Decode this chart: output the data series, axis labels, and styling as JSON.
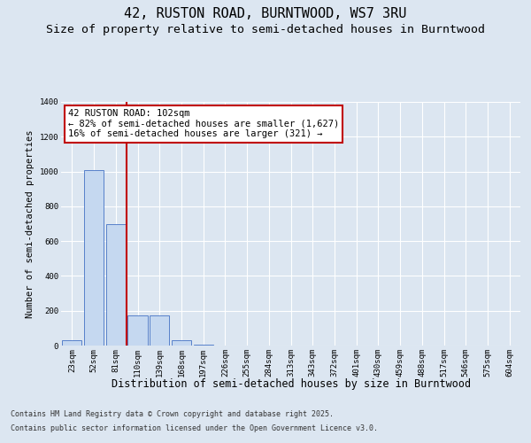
{
  "title_line1": "42, RUSTON ROAD, BURNTWOOD, WS7 3RU",
  "title_line2": "Size of property relative to semi-detached houses in Burntwood",
  "xlabel": "Distribution of semi-detached houses by size in Burntwood",
  "ylabel": "Number of semi-detached properties",
  "categories": [
    "23sqm",
    "52sqm",
    "81sqm",
    "110sqm",
    "139sqm",
    "168sqm",
    "197sqm",
    "226sqm",
    "255sqm",
    "284sqm",
    "313sqm",
    "343sqm",
    "372sqm",
    "401sqm",
    "430sqm",
    "459sqm",
    "488sqm",
    "517sqm",
    "546sqm",
    "575sqm",
    "604sqm"
  ],
  "values": [
    30,
    1010,
    700,
    175,
    175,
    30,
    5,
    0,
    0,
    0,
    0,
    0,
    0,
    0,
    0,
    0,
    0,
    0,
    0,
    0,
    0
  ],
  "bar_color": "#c5d8f0",
  "bar_edge_color": "#4472c4",
  "subject_index": 3,
  "subject_line_color": "#c00000",
  "annotation_line1": "42 RUSTON ROAD: 102sqm",
  "annotation_line2": "← 82% of semi-detached houses are smaller (1,627)",
  "annotation_line3": "16% of semi-detached houses are larger (321) →",
  "annotation_box_color": "#c00000",
  "annotation_bg": "#ffffff",
  "ylim": [
    0,
    1400
  ],
  "yticks": [
    0,
    200,
    400,
    600,
    800,
    1000,
    1200,
    1400
  ],
  "background_color": "#dce6f1",
  "plot_bg_color": "#dce6f1",
  "grid_color": "#ffffff",
  "footer_line1": "Contains HM Land Registry data © Crown copyright and database right 2025.",
  "footer_line2": "Contains public sector information licensed under the Open Government Licence v3.0.",
  "title_fontsize": 11,
  "subtitle_fontsize": 9.5,
  "tick_fontsize": 6.5,
  "ylabel_fontsize": 7.5,
  "xlabel_fontsize": 8.5,
  "annotation_fontsize": 7.5,
  "footer_fontsize": 6
}
